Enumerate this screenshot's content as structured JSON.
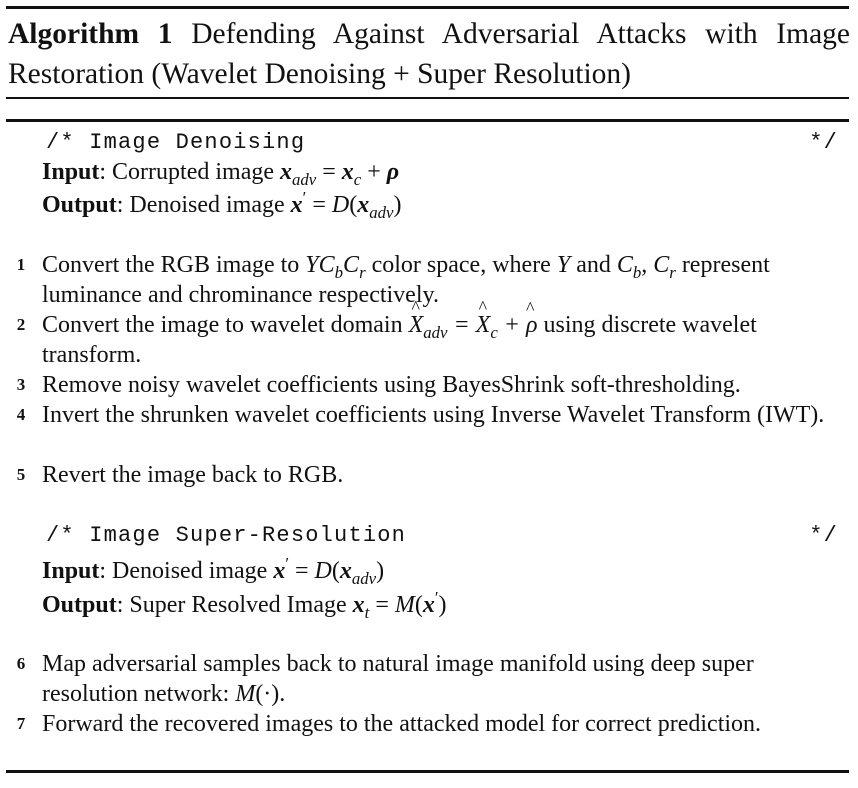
{
  "algorithm": {
    "label": "Algorithm 1",
    "title": "Defending Against Adversarial Attacks with Image Restoration (Wavelet Denoising + Super Resolution)"
  },
  "section1": {
    "comment_open": "/* Image Denoising",
    "comment_close": "*/",
    "input_label": "Input",
    "input_text": ": Corrupted image ",
    "output_label": "Output",
    "output_text": ": Denoised image "
  },
  "steps1": [
    {
      "num": "1",
      "a": "Convert the RGB image to ",
      "b": " color space, where ",
      "c": " and ",
      "d": " represent luminance and chrominance respectively."
    },
    {
      "num": "2",
      "a": "Convert the image to wavelet domain ",
      "b": " using discrete wavelet transform."
    },
    {
      "num": "3",
      "a": "Remove noisy wavelet coefficients using BayesShrink soft-thresholding."
    },
    {
      "num": "4",
      "a": "Invert the shrunken wavelet coefficients using Inverse Wavelet Transform (IWT)."
    },
    {
      "num": "5",
      "a": "Revert the image back to RGB."
    }
  ],
  "section2": {
    "comment_open": "/* Image Super-Resolution",
    "comment_close": "*/",
    "input_label": "Input",
    "input_text": ": Denoised image ",
    "output_label": "Output",
    "output_text": ": Super Resolved Image "
  },
  "steps2": [
    {
      "num": "6",
      "a": "Map adversarial samples back to natural image manifold using deep super resolution network: ",
      "b": "."
    },
    {
      "num": "7",
      "a": "Forward the recovered images to the attacked model for correct prediction."
    }
  ]
}
